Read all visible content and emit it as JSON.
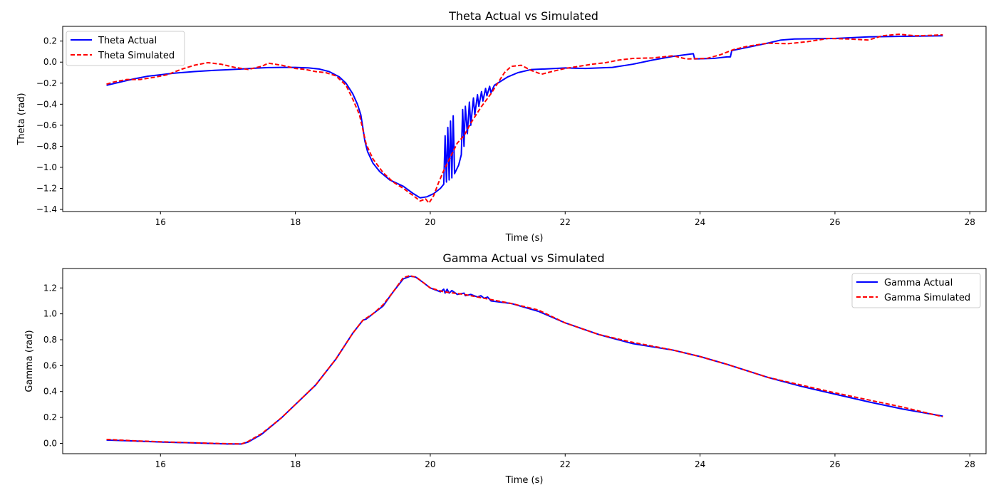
{
  "colors": {
    "actual": "#0000ff",
    "simulated": "#ff0000"
  },
  "chart_data": [
    {
      "id": "theta",
      "type": "line",
      "title": "Theta Actual vs Simulated",
      "xlabel": "Time (s)",
      "ylabel": "Theta (rad)",
      "xlim": [
        14.55,
        28.24
      ],
      "ylim": [
        -1.42,
        0.34
      ],
      "xticks": [
        16,
        18,
        20,
        22,
        24,
        26,
        28
      ],
      "yticks": [
        0.2,
        0.0,
        -0.2,
        -0.4,
        -0.6,
        -0.8,
        -1.0,
        -1.2,
        -1.4
      ],
      "xtick_labels": [
        "16",
        "18",
        "20",
        "22",
        "24",
        "26",
        "28"
      ],
      "ytick_labels": [
        "0.2",
        "0.0",
        "−0.2",
        "−0.4",
        "−0.6",
        "−0.8",
        "−1.0",
        "−1.2",
        "−1.4"
      ],
      "grid": false,
      "legend_position": "upper left",
      "series": [
        {
          "name": "Theta Actual",
          "color": "#0000ff",
          "style": "solid",
          "points": [
            [
              15.2,
              -0.22
            ],
            [
              15.4,
              -0.19
            ],
            [
              15.6,
              -0.16
            ],
            [
              15.8,
              -0.135
            ],
            [
              16.0,
              -0.12
            ],
            [
              16.2,
              -0.105
            ],
            [
              16.5,
              -0.09
            ],
            [
              16.8,
              -0.078
            ],
            [
              17.0,
              -0.072
            ],
            [
              17.2,
              -0.065
            ],
            [
              17.4,
              -0.058
            ],
            [
              17.6,
              -0.052
            ],
            [
              17.8,
              -0.05
            ],
            [
              18.0,
              -0.05
            ],
            [
              18.2,
              -0.055
            ],
            [
              18.35,
              -0.065
            ],
            [
              18.5,
              -0.09
            ],
            [
              18.65,
              -0.14
            ],
            [
              18.75,
              -0.2
            ],
            [
              18.85,
              -0.3
            ],
            [
              18.92,
              -0.4
            ],
            [
              18.97,
              -0.5
            ],
            [
              19.0,
              -0.62
            ],
            [
              19.03,
              -0.75
            ],
            [
              19.07,
              -0.85
            ],
            [
              19.15,
              -0.96
            ],
            [
              19.25,
              -1.04
            ],
            [
              19.4,
              -1.12
            ],
            [
              19.6,
              -1.18
            ],
            [
              19.75,
              -1.25
            ],
            [
              19.85,
              -1.29
            ],
            [
              19.95,
              -1.28
            ],
            [
              20.05,
              -1.25
            ],
            [
              20.15,
              -1.2
            ],
            [
              20.2,
              -1.16
            ],
            [
              20.22,
              -0.7
            ],
            [
              20.24,
              -1.14
            ],
            [
              20.26,
              -0.62
            ],
            [
              20.28,
              -1.12
            ],
            [
              20.3,
              -0.56
            ],
            [
              20.32,
              -1.1
            ],
            [
              20.34,
              -0.51
            ],
            [
              20.36,
              -1.06
            ],
            [
              20.42,
              -0.98
            ],
            [
              20.46,
              -0.88
            ],
            [
              20.48,
              -0.45
            ],
            [
              20.5,
              -0.8
            ],
            [
              20.52,
              -0.42
            ],
            [
              20.55,
              -0.68
            ],
            [
              20.58,
              -0.38
            ],
            [
              20.6,
              -0.6
            ],
            [
              20.64,
              -0.34
            ],
            [
              20.66,
              -0.5
            ],
            [
              20.7,
              -0.31
            ],
            [
              20.72,
              -0.42
            ],
            [
              20.76,
              -0.28
            ],
            [
              20.78,
              -0.37
            ],
            [
              20.82,
              -0.25
            ],
            [
              20.84,
              -0.32
            ],
            [
              20.88,
              -0.23
            ],
            [
              20.9,
              -0.29
            ],
            [
              20.95,
              -0.22
            ],
            [
              21.0,
              -0.2
            ],
            [
              21.15,
              -0.14
            ],
            [
              21.3,
              -0.1
            ],
            [
              21.5,
              -0.07
            ],
            [
              21.7,
              -0.065
            ],
            [
              22.0,
              -0.055
            ],
            [
              22.3,
              -0.06
            ],
            [
              22.7,
              -0.05
            ],
            [
              23.0,
              -0.02
            ],
            [
              23.3,
              0.02
            ],
            [
              23.6,
              0.055
            ],
            [
              23.9,
              0.08
            ],
            [
              23.92,
              0.03
            ],
            [
              24.2,
              0.035
            ],
            [
              24.4,
              0.05
            ],
            [
              24.45,
              0.05
            ],
            [
              24.47,
              0.11
            ],
            [
              24.7,
              0.14
            ],
            [
              25.0,
              0.18
            ],
            [
              25.2,
              0.21
            ],
            [
              25.4,
              0.22
            ],
            [
              26.0,
              0.225
            ],
            [
              26.5,
              0.24
            ],
            [
              27.0,
              0.245
            ],
            [
              27.6,
              0.25
            ]
          ]
        },
        {
          "name": "Theta Simulated",
          "color": "#ff0000",
          "style": "dashed",
          "points": [
            [
              15.2,
              -0.21
            ],
            [
              15.3,
              -0.19
            ],
            [
              15.5,
              -0.165
            ],
            [
              15.7,
              -0.165
            ],
            [
              15.9,
              -0.145
            ],
            [
              16.1,
              -0.12
            ],
            [
              16.3,
              -0.07
            ],
            [
              16.5,
              -0.03
            ],
            [
              16.7,
              -0.005
            ],
            [
              16.9,
              -0.02
            ],
            [
              17.1,
              -0.05
            ],
            [
              17.3,
              -0.07
            ],
            [
              17.5,
              -0.04
            ],
            [
              17.6,
              -0.01
            ],
            [
              17.8,
              -0.03
            ],
            [
              18.0,
              -0.06
            ],
            [
              18.15,
              -0.07
            ],
            [
              18.3,
              -0.09
            ],
            [
              18.45,
              -0.1
            ],
            [
              18.6,
              -0.13
            ],
            [
              18.75,
              -0.22
            ],
            [
              18.85,
              -0.35
            ],
            [
              18.95,
              -0.5
            ],
            [
              19.0,
              -0.64
            ],
            [
              19.05,
              -0.78
            ],
            [
              19.15,
              -0.92
            ],
            [
              19.3,
              -1.05
            ],
            [
              19.45,
              -1.14
            ],
            [
              19.6,
              -1.2
            ],
            [
              19.75,
              -1.27
            ],
            [
              19.85,
              -1.32
            ],
            [
              19.93,
              -1.3
            ],
            [
              19.98,
              -1.34
            ],
            [
              20.05,
              -1.27
            ],
            [
              20.12,
              -1.15
            ],
            [
              20.2,
              -1.03
            ],
            [
              20.3,
              -0.9
            ],
            [
              20.4,
              -0.77
            ],
            [
              20.5,
              -0.7
            ],
            [
              20.6,
              -0.58
            ],
            [
              20.75,
              -0.43
            ],
            [
              20.9,
              -0.3
            ],
            [
              21.0,
              -0.2
            ],
            [
              21.1,
              -0.1
            ],
            [
              21.2,
              -0.04
            ],
            [
              21.35,
              -0.03
            ],
            [
              21.5,
              -0.08
            ],
            [
              21.65,
              -0.115
            ],
            [
              21.8,
              -0.09
            ],
            [
              22.0,
              -0.06
            ],
            [
              22.2,
              -0.04
            ],
            [
              22.4,
              -0.02
            ],
            [
              22.6,
              -0.005
            ],
            [
              22.8,
              0.02
            ],
            [
              23.0,
              0.035
            ],
            [
              23.3,
              0.04
            ],
            [
              23.6,
              0.06
            ],
            [
              23.8,
              0.03
            ],
            [
              24.1,
              0.035
            ],
            [
              24.3,
              0.07
            ],
            [
              24.5,
              0.12
            ],
            [
              24.7,
              0.15
            ],
            [
              25.0,
              0.18
            ],
            [
              25.3,
              0.175
            ],
            [
              25.6,
              0.195
            ],
            [
              25.9,
              0.225
            ],
            [
              26.2,
              0.22
            ],
            [
              26.5,
              0.21
            ],
            [
              26.7,
              0.25
            ],
            [
              26.95,
              0.265
            ],
            [
              27.2,
              0.25
            ],
            [
              27.45,
              0.255
            ],
            [
              27.6,
              0.26
            ]
          ]
        }
      ]
    },
    {
      "id": "gamma",
      "type": "line",
      "title": "Gamma Actual vs Simulated",
      "xlabel": "Time (s)",
      "ylabel": "Gamma (rad)",
      "xlim": [
        14.55,
        28.24
      ],
      "ylim": [
        -0.08,
        1.35
      ],
      "xticks": [
        16,
        18,
        20,
        22,
        24,
        26,
        28
      ],
      "yticks": [
        1.2,
        1.0,
        0.8,
        0.6,
        0.4,
        0.2,
        0.0
      ],
      "xtick_labels": [
        "16",
        "18",
        "20",
        "22",
        "24",
        "26",
        "28"
      ],
      "ytick_labels": [
        "1.2",
        "1.0",
        "0.8",
        "0.6",
        "0.4",
        "0.2",
        "0.0"
      ],
      "grid": false,
      "legend_position": "upper right",
      "series": [
        {
          "name": "Gamma Actual",
          "color": "#0000ff",
          "style": "solid",
          "points": [
            [
              15.2,
              0.025
            ],
            [
              15.6,
              0.018
            ],
            [
              16.0,
              0.01
            ],
            [
              16.5,
              0.003
            ],
            [
              17.0,
              -0.005
            ],
            [
              17.2,
              -0.005
            ],
            [
              17.3,
              0.01
            ],
            [
              17.5,
              0.07
            ],
            [
              17.8,
              0.2
            ],
            [
              18.0,
              0.3
            ],
            [
              18.3,
              0.45
            ],
            [
              18.6,
              0.65
            ],
            [
              18.85,
              0.85
            ],
            [
              19.0,
              0.95
            ],
            [
              19.05,
              0.96
            ],
            [
              19.15,
              1.0
            ],
            [
              19.3,
              1.06
            ],
            [
              19.45,
              1.17
            ],
            [
              19.6,
              1.27
            ],
            [
              19.7,
              1.29
            ],
            [
              19.78,
              1.285
            ],
            [
              19.9,
              1.24
            ],
            [
              20.0,
              1.2
            ],
            [
              20.15,
              1.17
            ],
            [
              20.2,
              1.19
            ],
            [
              20.22,
              1.16
            ],
            [
              20.25,
              1.19
            ],
            [
              20.28,
              1.16
            ],
            [
              20.32,
              1.18
            ],
            [
              20.4,
              1.15
            ],
            [
              20.5,
              1.16
            ],
            [
              20.52,
              1.14
            ],
            [
              20.6,
              1.15
            ],
            [
              20.7,
              1.13
            ],
            [
              20.75,
              1.14
            ],
            [
              20.8,
              1.12
            ],
            [
              20.85,
              1.13
            ],
            [
              20.9,
              1.1
            ],
            [
              21.2,
              1.08
            ],
            [
              21.6,
              1.02
            ],
            [
              22.0,
              0.93
            ],
            [
              22.5,
              0.84
            ],
            [
              23.0,
              0.77
            ],
            [
              23.6,
              0.72
            ],
            [
              24.0,
              0.67
            ],
            [
              24.4,
              0.61
            ],
            [
              25.0,
              0.51
            ],
            [
              25.5,
              0.44
            ],
            [
              26.0,
              0.38
            ],
            [
              26.5,
              0.32
            ],
            [
              27.0,
              0.265
            ],
            [
              27.6,
              0.21
            ]
          ]
        },
        {
          "name": "Gamma Simulated",
          "color": "#ff0000",
          "style": "dashed",
          "points": [
            [
              15.2,
              0.03
            ],
            [
              15.6,
              0.02
            ],
            [
              16.0,
              0.012
            ],
            [
              16.5,
              0.004
            ],
            [
              17.0,
              -0.003
            ],
            [
              17.2,
              -0.005
            ],
            [
              17.3,
              0.015
            ],
            [
              17.5,
              0.075
            ],
            [
              17.8,
              0.2
            ],
            [
              18.0,
              0.3
            ],
            [
              18.3,
              0.45
            ],
            [
              18.6,
              0.65
            ],
            [
              18.85,
              0.85
            ],
            [
              19.0,
              0.95
            ],
            [
              19.15,
              1.0
            ],
            [
              19.3,
              1.07
            ],
            [
              19.45,
              1.17
            ],
            [
              19.6,
              1.28
            ],
            [
              19.7,
              1.295
            ],
            [
              19.8,
              1.28
            ],
            [
              19.9,
              1.24
            ],
            [
              20.0,
              1.2
            ],
            [
              20.2,
              1.17
            ],
            [
              20.5,
              1.15
            ],
            [
              20.8,
              1.12
            ],
            [
              21.2,
              1.08
            ],
            [
              21.6,
              1.03
            ],
            [
              22.0,
              0.93
            ],
            [
              22.5,
              0.84
            ],
            [
              23.0,
              0.78
            ],
            [
              23.6,
              0.72
            ],
            [
              24.0,
              0.67
            ],
            [
              24.4,
              0.61
            ],
            [
              25.0,
              0.51
            ],
            [
              25.5,
              0.45
            ],
            [
              26.0,
              0.39
            ],
            [
              26.5,
              0.335
            ],
            [
              27.0,
              0.28
            ],
            [
              27.6,
              0.205
            ]
          ]
        }
      ]
    }
  ]
}
